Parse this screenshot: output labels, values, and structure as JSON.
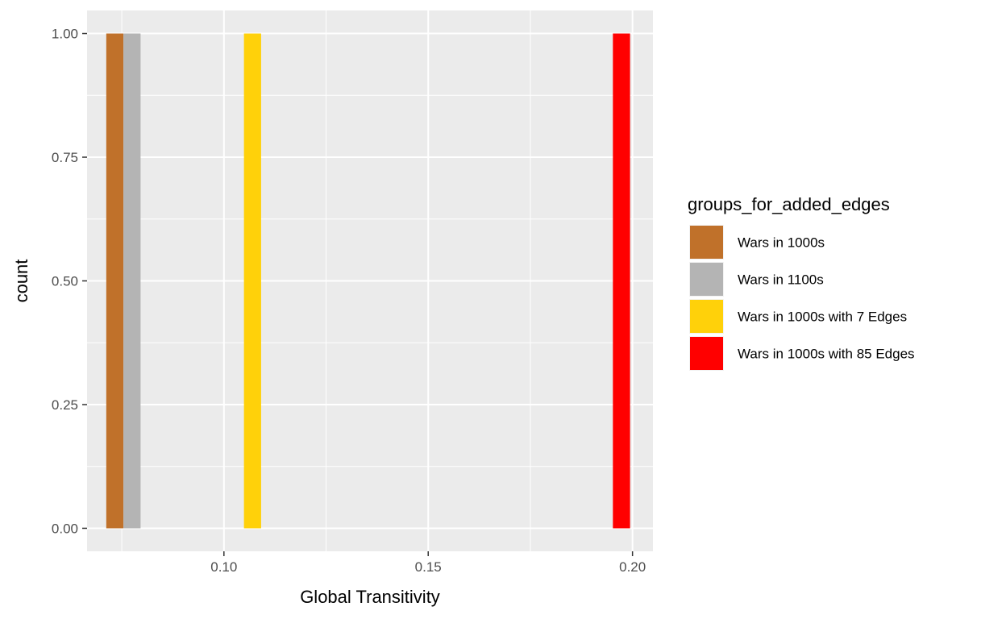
{
  "chart_data": {
    "type": "bar",
    "xlabel": "Global Transitivity",
    "ylabel": "count",
    "xlim": [
      0.0665,
      0.205
    ],
    "ylim": [
      -0.0465,
      1.0465
    ],
    "x_ticks": [
      0.1,
      0.15,
      0.2
    ],
    "x_tick_labels": [
      "0.10",
      "0.15",
      "0.20"
    ],
    "y_ticks": [
      0.0,
      0.25,
      0.5,
      0.75,
      1.0
    ],
    "y_tick_labels": [
      "0.00",
      "0.25",
      "0.50",
      "0.75",
      "1.00"
    ],
    "grid": true,
    "legend": {
      "title": "groups_for_added_edges",
      "position": "right"
    },
    "series": [
      {
        "name": "Wars in 1000s",
        "x": [
          0.0733
        ],
        "values": [
          1
        ],
        "color": "#C0712A"
      },
      {
        "name": "Wars in 1100s",
        "x": [
          0.0775
        ],
        "values": [
          1
        ],
        "color": "#B4B4B4"
      },
      {
        "name": "Wars in 1000s with 7 Edges",
        "x": [
          0.107
        ],
        "values": [
          1
        ],
        "color": "#FFD10A"
      },
      {
        "name": "Wars in 1000s with 85 Edges",
        "x": [
          0.1973
        ],
        "values": [
          1
        ],
        "color": "#FF0000"
      }
    ],
    "bin_width": 0.0042
  }
}
